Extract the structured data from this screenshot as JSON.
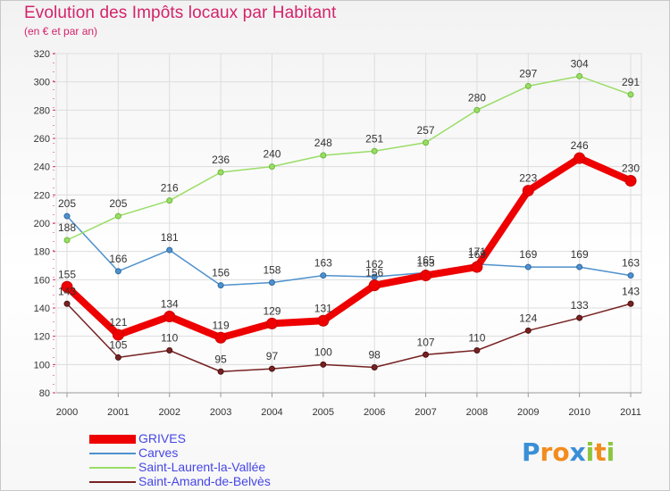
{
  "title": "Evolution des Impôts locaux par Habitant",
  "subtitle": "(en € et par an)",
  "logo": {
    "text": "Proxiti",
    "letters": [
      {
        "ch": "P",
        "color": "#3a8fd6"
      },
      {
        "ch": "r",
        "color": "#f28c1e"
      },
      {
        "ch": "o",
        "color": "#f28c1e"
      },
      {
        "ch": "x",
        "color": "#3a8fd6"
      },
      {
        "ch": "i",
        "color": "#8cc63f"
      },
      {
        "ch": "t",
        "color": "#f28c1e"
      },
      {
        "ch": "i",
        "color": "#8cc63f"
      }
    ]
  },
  "chart_data": {
    "type": "line",
    "title": "Evolution des Impôts locaux par Habitant",
    "subtitle": "(en € et par an)",
    "x": [
      "2000",
      "2001",
      "2002",
      "2003",
      "2004",
      "2005",
      "2006",
      "2007",
      "2008",
      "2009",
      "2010",
      "2011"
    ],
    "ylim": [
      80,
      320
    ],
    "yticks": [
      80,
      100,
      120,
      140,
      160,
      180,
      200,
      220,
      240,
      260,
      280,
      300,
      320
    ],
    "grid": true,
    "legend_position": "bottom-left",
    "series": [
      {
        "name": "GRIVES",
        "color": "#ee0000",
        "values": [
          155,
          121,
          134,
          119,
          129,
          131,
          156,
          163,
          169,
          223,
          246,
          230
        ]
      },
      {
        "name": "Carves",
        "color": "#4f91cd",
        "values": [
          205,
          166,
          181,
          156,
          158,
          163,
          162,
          165,
          171,
          169,
          169,
          163
        ]
      },
      {
        "name": "Saint-Laurent-la-Vallée",
        "color": "#99dd66",
        "values": [
          188,
          205,
          216,
          236,
          240,
          248,
          251,
          257,
          280,
          297,
          304,
          291
        ]
      },
      {
        "name": "Saint-Amand-de-Belvès",
        "color": "#772222",
        "values": [
          143,
          105,
          110,
          95,
          97,
          100,
          98,
          107,
          110,
          124,
          133,
          143
        ]
      }
    ]
  }
}
